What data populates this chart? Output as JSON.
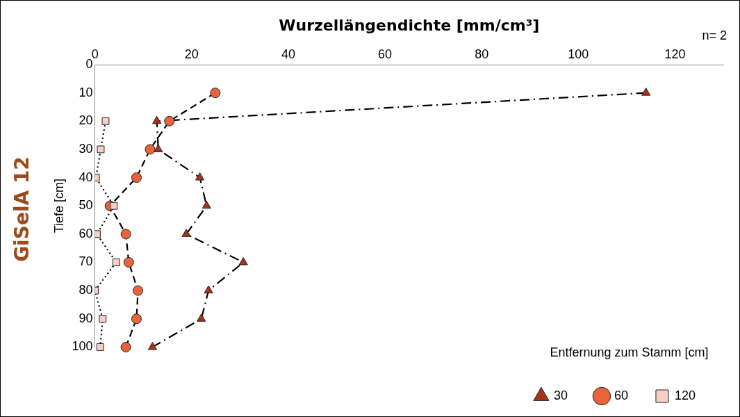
{
  "chart_data": {
    "type": "line",
    "orientation": "horizontal",
    "title": "Wurzellängendichte [mm/cm³]",
    "ylabel": "Tiefe [cm]",
    "legend_title": "Entfernung zum Stamm [cm]",
    "legend": "bottom",
    "grid": false,
    "annotations": [
      "GiSelA 12",
      "n= 2"
    ],
    "categories": [
      "0",
      "10",
      "20",
      "30",
      "40",
      "50",
      "60",
      "70",
      "80",
      "90",
      "100"
    ],
    "xlim": [
      0,
      130
    ],
    "xticks": [
      0,
      20,
      40,
      60,
      80,
      100,
      120
    ],
    "series": [
      {
        "name": "30",
        "color": "#a8321a",
        "marker": "triangle",
        "line_style": "dashdot",
        "values": [
          null,
          114,
          12.8,
          13.1,
          21.7,
          23.1,
          18.9,
          30.7,
          23.5,
          22.0,
          11.9
        ]
      },
      {
        "name": "60",
        "color": "#e8643c",
        "marker": "circle",
        "line_style": "dashed",
        "values": [
          null,
          24.9,
          15.4,
          11.4,
          8.6,
          3.1,
          6.4,
          7.0,
          8.9,
          8.6,
          6.4
        ]
      },
      {
        "name": "120",
        "color": "#f7cfc6",
        "marker": "square",
        "line_style": "dotted",
        "values": [
          null,
          null,
          2.2,
          1.2,
          0.2,
          3.9,
          0.4,
          4.4,
          0.0,
          1.6,
          1.1
        ]
      }
    ]
  }
}
